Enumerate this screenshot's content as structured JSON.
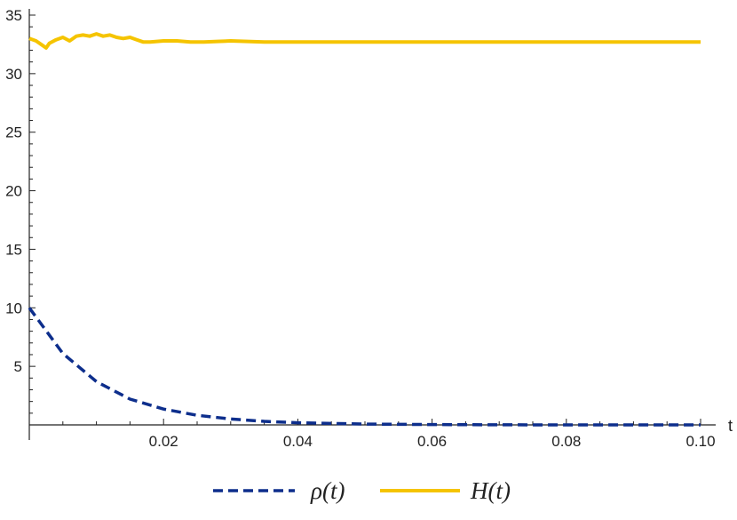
{
  "chart_data": {
    "type": "line",
    "xlabel": "t",
    "ylabel": "",
    "xlim": [
      0,
      0.1
    ],
    "ylim": [
      0,
      35
    ],
    "xticks": [
      "0.02",
      "0.04",
      "0.06",
      "0.08",
      "0.10"
    ],
    "yticks": [
      "5",
      "10",
      "15",
      "20",
      "25",
      "30",
      "35"
    ],
    "grid": false,
    "legend_position": "bottom",
    "series": [
      {
        "name": "ρ(t)",
        "style": "dashed",
        "color": "#0d2e8c",
        "x": [
          0,
          0.005,
          0.01,
          0.015,
          0.02,
          0.025,
          0.03,
          0.035,
          0.04,
          0.05,
          0.06,
          0.07,
          0.08,
          0.09,
          0.1
        ],
        "y": [
          10,
          6.1,
          3.7,
          2.2,
          1.35,
          0.82,
          0.5,
          0.3,
          0.18,
          0.07,
          0.03,
          0.01,
          0.0,
          0.0,
          0.0
        ]
      },
      {
        "name": "H(t)",
        "style": "solid",
        "color": "#f5c400",
        "x": [
          0,
          0.001,
          0.002,
          0.0025,
          0.003,
          0.004,
          0.005,
          0.006,
          0.007,
          0.008,
          0.009,
          0.01,
          0.011,
          0.012,
          0.013,
          0.014,
          0.015,
          0.016,
          0.017,
          0.018,
          0.02,
          0.022,
          0.024,
          0.026,
          0.028,
          0.03,
          0.035,
          0.04,
          0.05,
          0.06,
          0.07,
          0.08,
          0.09,
          0.1
        ],
        "y": [
          33.0,
          32.8,
          32.4,
          32.2,
          32.6,
          32.9,
          33.1,
          32.8,
          33.2,
          33.3,
          33.2,
          33.4,
          33.2,
          33.3,
          33.1,
          33.0,
          33.1,
          32.9,
          32.7,
          32.7,
          32.8,
          32.8,
          32.7,
          32.7,
          32.75,
          32.8,
          32.7,
          32.7,
          32.7,
          32.7,
          32.7,
          32.7,
          32.7,
          32.7
        ]
      }
    ]
  }
}
